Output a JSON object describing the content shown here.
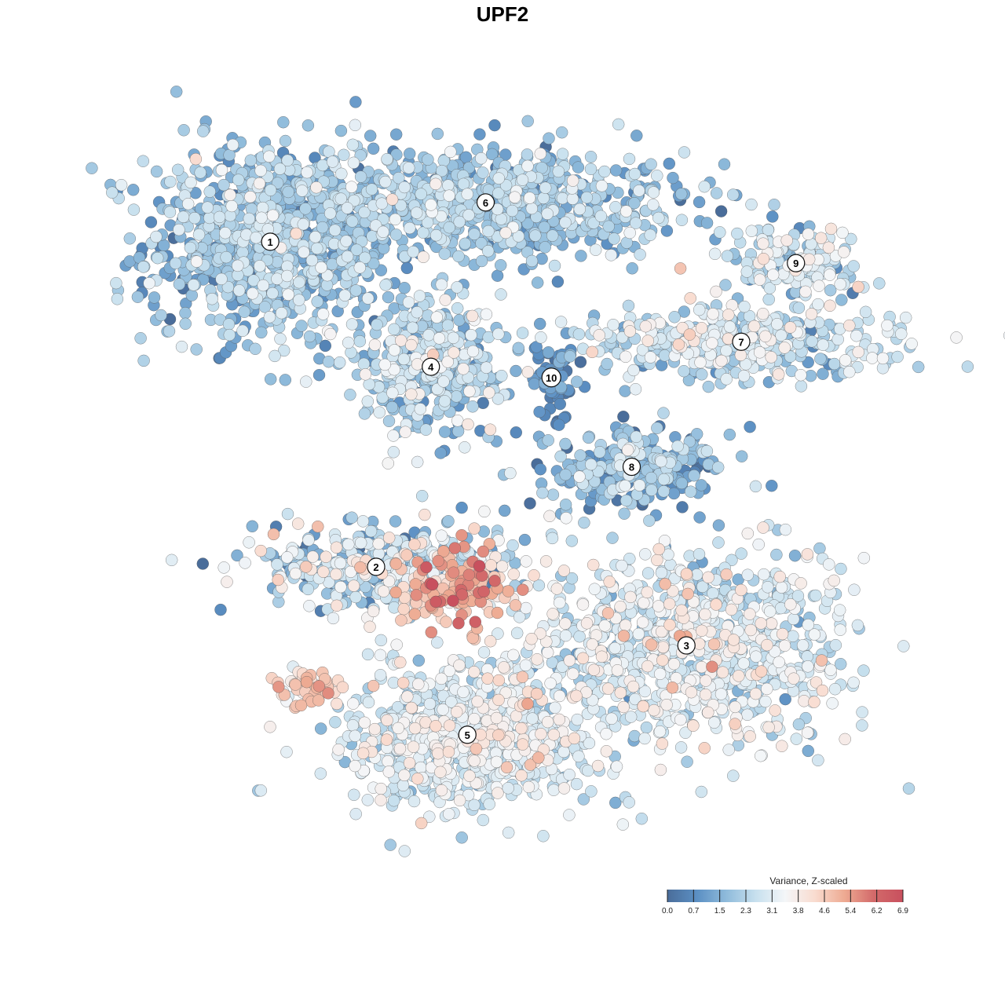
{
  "chart_data": {
    "type": "scatter",
    "title": "UPF2",
    "xlabel": "",
    "ylabel": "",
    "grid": false,
    "legend_position": "bottom-right",
    "colorbar": {
      "title": "Variance, Z-scaled",
      "ticks": [
        "0.0",
        "0.7",
        "1.5",
        "2.3",
        "3.1",
        "3.8",
        "4.6",
        "5.4",
        "6.2",
        "6.9"
      ],
      "range": [
        0.0,
        6.9
      ],
      "colors": [
        "#4a6d9a",
        "#5b8fc3",
        "#8fbbdb",
        "#c7e0ee",
        "#f4f6f8",
        "#f9dcd0",
        "#eeab93",
        "#d36a6a",
        "#c8505e"
      ]
    },
    "clusters": [
      {
        "id": "1",
        "x": -0.69,
        "y": 0.73,
        "spread_x": 0.34,
        "spread_y": 0.28,
        "n": 900,
        "mean": 1.9,
        "sd": 0.7
      },
      {
        "id": "6",
        "x": -0.1,
        "y": 0.84,
        "spread_x": 0.55,
        "spread_y": 0.15,
        "n": 800,
        "mean": 1.9,
        "sd": 0.65
      },
      {
        "id": "4",
        "x": -0.25,
        "y": 0.38,
        "spread_x": 0.2,
        "spread_y": 0.18,
        "n": 400,
        "mean": 2.2,
        "sd": 0.8
      },
      {
        "id": "10",
        "x": 0.08,
        "y": 0.35,
        "spread_x": 0.07,
        "spread_y": 0.1,
        "n": 70,
        "mean": 0.8,
        "sd": 0.4
      },
      {
        "id": "9",
        "x": 0.75,
        "y": 0.67,
        "spread_x": 0.18,
        "spread_y": 0.1,
        "n": 160,
        "mean": 2.6,
        "sd": 0.8
      },
      {
        "id": "7",
        "x": 0.6,
        "y": 0.45,
        "spread_x": 0.45,
        "spread_y": 0.1,
        "n": 380,
        "mean": 2.5,
        "sd": 0.7
      },
      {
        "id": "8",
        "x": 0.3,
        "y": 0.1,
        "spread_x": 0.25,
        "spread_y": 0.12,
        "n": 260,
        "mean": 1.6,
        "sd": 0.8
      },
      {
        "id": "2",
        "x": -0.4,
        "y": -0.18,
        "spread_x": 0.35,
        "spread_y": 0.12,
        "n": 380,
        "mean": 2.4,
        "sd": 1.1
      },
      {
        "id": "hotspot",
        "x": -0.18,
        "y": -0.24,
        "spread_x": 0.15,
        "spread_y": 0.1,
        "n": 160,
        "mean": 4.8,
        "sd": 0.9
      },
      {
        "id": "3",
        "x": 0.45,
        "y": -0.4,
        "spread_x": 0.45,
        "spread_y": 0.28,
        "n": 900,
        "mean": 2.9,
        "sd": 0.7
      },
      {
        "id": "5",
        "x": -0.15,
        "y": -0.65,
        "spread_x": 0.35,
        "spread_y": 0.2,
        "n": 750,
        "mean": 3.0,
        "sd": 0.6
      },
      {
        "id": "outlier",
        "x": -0.58,
        "y": -0.52,
        "spread_x": 0.08,
        "spread_y": 0.05,
        "n": 60,
        "mean": 4.4,
        "sd": 0.6
      }
    ],
    "xlim": [
      -1.0,
      1.0
    ],
    "ylim": [
      -1.0,
      1.0
    ]
  }
}
